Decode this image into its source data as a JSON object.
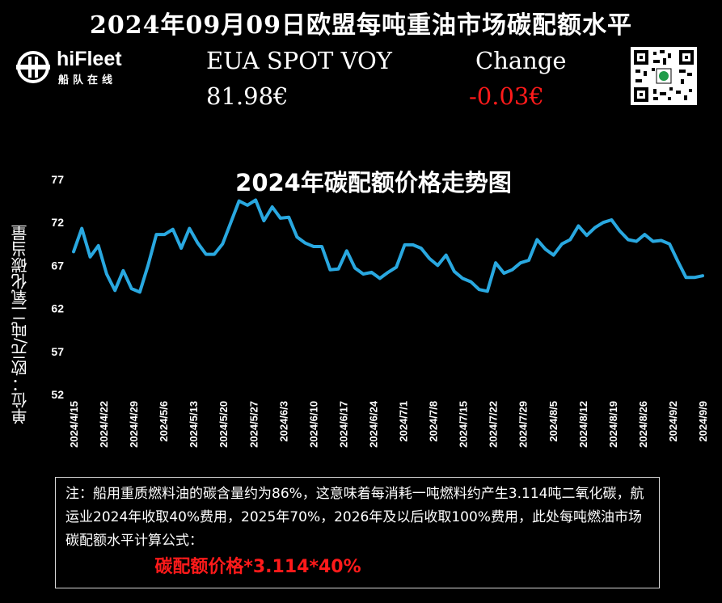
{
  "header": {
    "title": "2024年09月09日欧盟每吨重油市场碳配额水平",
    "logo_name": "hiFleet",
    "logo_sub": "船队在线",
    "spot_label": "EUA SPOT VOY",
    "spot_value": "81.98€",
    "change_label": "Change",
    "change_value": "-0.03€"
  },
  "colors": {
    "line": "#29a8e0",
    "change": "#ff1a1a",
    "background": "#000000",
    "text": "#ffffff"
  },
  "chart_data": {
    "type": "line",
    "title": "2024年碳配额价格走势图",
    "ylabel": "单位：欧元/吨二氧化碳当量",
    "xlabel": "",
    "ylim": [
      52,
      77
    ],
    "yticks": [
      "52",
      "57",
      "62",
      "67",
      "72",
      "77"
    ],
    "xticks": [
      "2024/4/15",
      "2024/4/22",
      "2024/4/29",
      "2024/5/6",
      "2024/5/13",
      "2024/5/20",
      "2024/5/27",
      "2024/6/3",
      "2024/6/10",
      "2024/6/17",
      "2024/6/24",
      "2024/7/1",
      "2024/7/8",
      "2024/7/15",
      "2024/7/22",
      "2024/7/29",
      "2024/8/5",
      "2024/8/12",
      "2024/8/19",
      "2024/8/26",
      "2024/9/2",
      "2024/9/9"
    ],
    "grid": false,
    "legend": "none",
    "series": [
      {
        "values": [
          68.6,
          71.3,
          68.0,
          69.3,
          66.0,
          64.1,
          66.4,
          64.3,
          63.9,
          67.0,
          70.6,
          70.6,
          71.2,
          69.0,
          71.3,
          69.6,
          68.3,
          68.3,
          69.5,
          72.0,
          74.5,
          74.0,
          74.6,
          72.2,
          73.8,
          72.5,
          72.6,
          70.3,
          69.6,
          69.2,
          69.2,
          66.5,
          66.6,
          68.7,
          66.7,
          66.0,
          66.2,
          65.5,
          66.2,
          66.8,
          69.4,
          69.4,
          69.0,
          67.8,
          67.0,
          68.2,
          66.3,
          65.5,
          65.1,
          64.2,
          64.0,
          67.3,
          66.1,
          66.5,
          67.3,
          67.6,
          70.0,
          68.9,
          68.2,
          69.5,
          70.0,
          71.6,
          70.5,
          71.4,
          72.0,
          72.3,
          71.0,
          70.0,
          69.8,
          70.6,
          69.8,
          69.9,
          69.5,
          67.5,
          65.6,
          65.6,
          65.8
        ]
      }
    ]
  },
  "note": {
    "text": "注：船用重质燃料油的碳含量约为86%，这意味着每消耗一吨燃料约产生3.114吨二氧化碳，航运业2024年收取40%费用，2025年70%，2026年及以后收取100%费用，此处每吨燃油市场碳配额水平计算公式：",
    "formula": "碳配额价格*3.114*40%"
  }
}
